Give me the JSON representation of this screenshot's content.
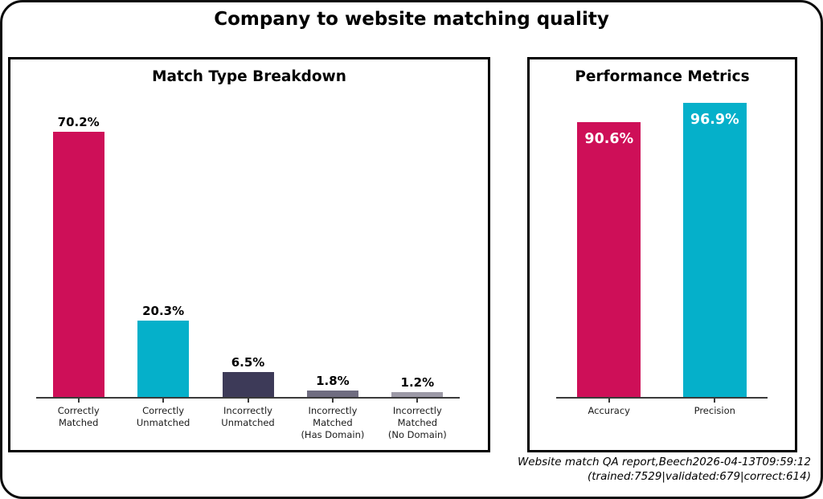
{
  "title": "Company to website matching quality",
  "panels": [
    {
      "title": "Match Type Breakdown",
      "value_label_position": "above",
      "bars": [
        {
          "category": "Correctly\nMatched",
          "value": 70.2,
          "value_label": "70.2%",
          "color": "#CE0F58"
        },
        {
          "category": "Correctly\nUnmatched",
          "value": 20.3,
          "value_label": "20.3%",
          "color": "#05B0CA"
        },
        {
          "category": "Incorrectly\nUnmatched",
          "value": 6.5,
          "value_label": "6.5%",
          "color": "#3D3A58"
        },
        {
          "category": "Incorrectly\nMatched\n(Has Domain)",
          "value": 1.8,
          "value_label": "1.8%",
          "color": "#6F6C80"
        },
        {
          "category": "Incorrectly\nMatched\n(No Domain)",
          "value": 1.2,
          "value_label": "1.2%",
          "color": "#9C99A6"
        }
      ]
    },
    {
      "title": "Performance Metrics",
      "value_label_position": "inside",
      "bars": [
        {
          "category": "Accuracy",
          "value": 90.6,
          "value_label": "90.6%",
          "color": "#CE0F58"
        },
        {
          "category": "Precision",
          "value": 96.9,
          "value_label": "96.9%",
          "color": "#05B0CA"
        }
      ]
    }
  ],
  "footer": {
    "line1": "Website match QA report,Beech2026-04-13T09:59:12",
    "line2": "(trained:7529|validated:679|correct:614)"
  },
  "colors": {
    "bar_pink": "#CE0F58",
    "bar_cyan": "#05B0CA",
    "bar_dark_slate": "#3D3A58",
    "bar_gray": "#6F6C80",
    "bar_light_gray": "#9C99A6",
    "axis": "#3a3a3a",
    "panel_border": "#000000",
    "background": "#ffffff"
  },
  "chart_data": [
    {
      "type": "bar",
      "title": "Match Type Breakdown",
      "categories": [
        "Correctly Matched",
        "Correctly Unmatched",
        "Incorrectly Unmatched",
        "Incorrectly Matched (Has Domain)",
        "Incorrectly Matched (No Domain)"
      ],
      "values": [
        70.2,
        20.3,
        6.5,
        1.8,
        1.2
      ],
      "unit": "%",
      "data_labels": [
        "70.2%",
        "20.3%",
        "6.5%",
        "1.8%",
        "1.2%"
      ],
      "bar_colors": [
        "#CE0F58",
        "#05B0CA",
        "#3D3A58",
        "#6F6C80",
        "#9C99A6"
      ],
      "xlabel": "",
      "ylabel": "",
      "ylim": [
        0,
        89
      ],
      "grid": false,
      "legend": "none",
      "data_label_position": "above bars"
    },
    {
      "type": "bar",
      "title": "Performance Metrics",
      "categories": [
        "Accuracy",
        "Precision"
      ],
      "values": [
        90.6,
        96.9
      ],
      "unit": "%",
      "data_labels": [
        "90.6%",
        "96.9%"
      ],
      "bar_colors": [
        "#CE0F58",
        "#05B0CA"
      ],
      "xlabel": "",
      "ylabel": "",
      "ylim": [
        0,
        111
      ],
      "grid": false,
      "legend": "none",
      "data_label_position": "inside bars, white"
    }
  ]
}
